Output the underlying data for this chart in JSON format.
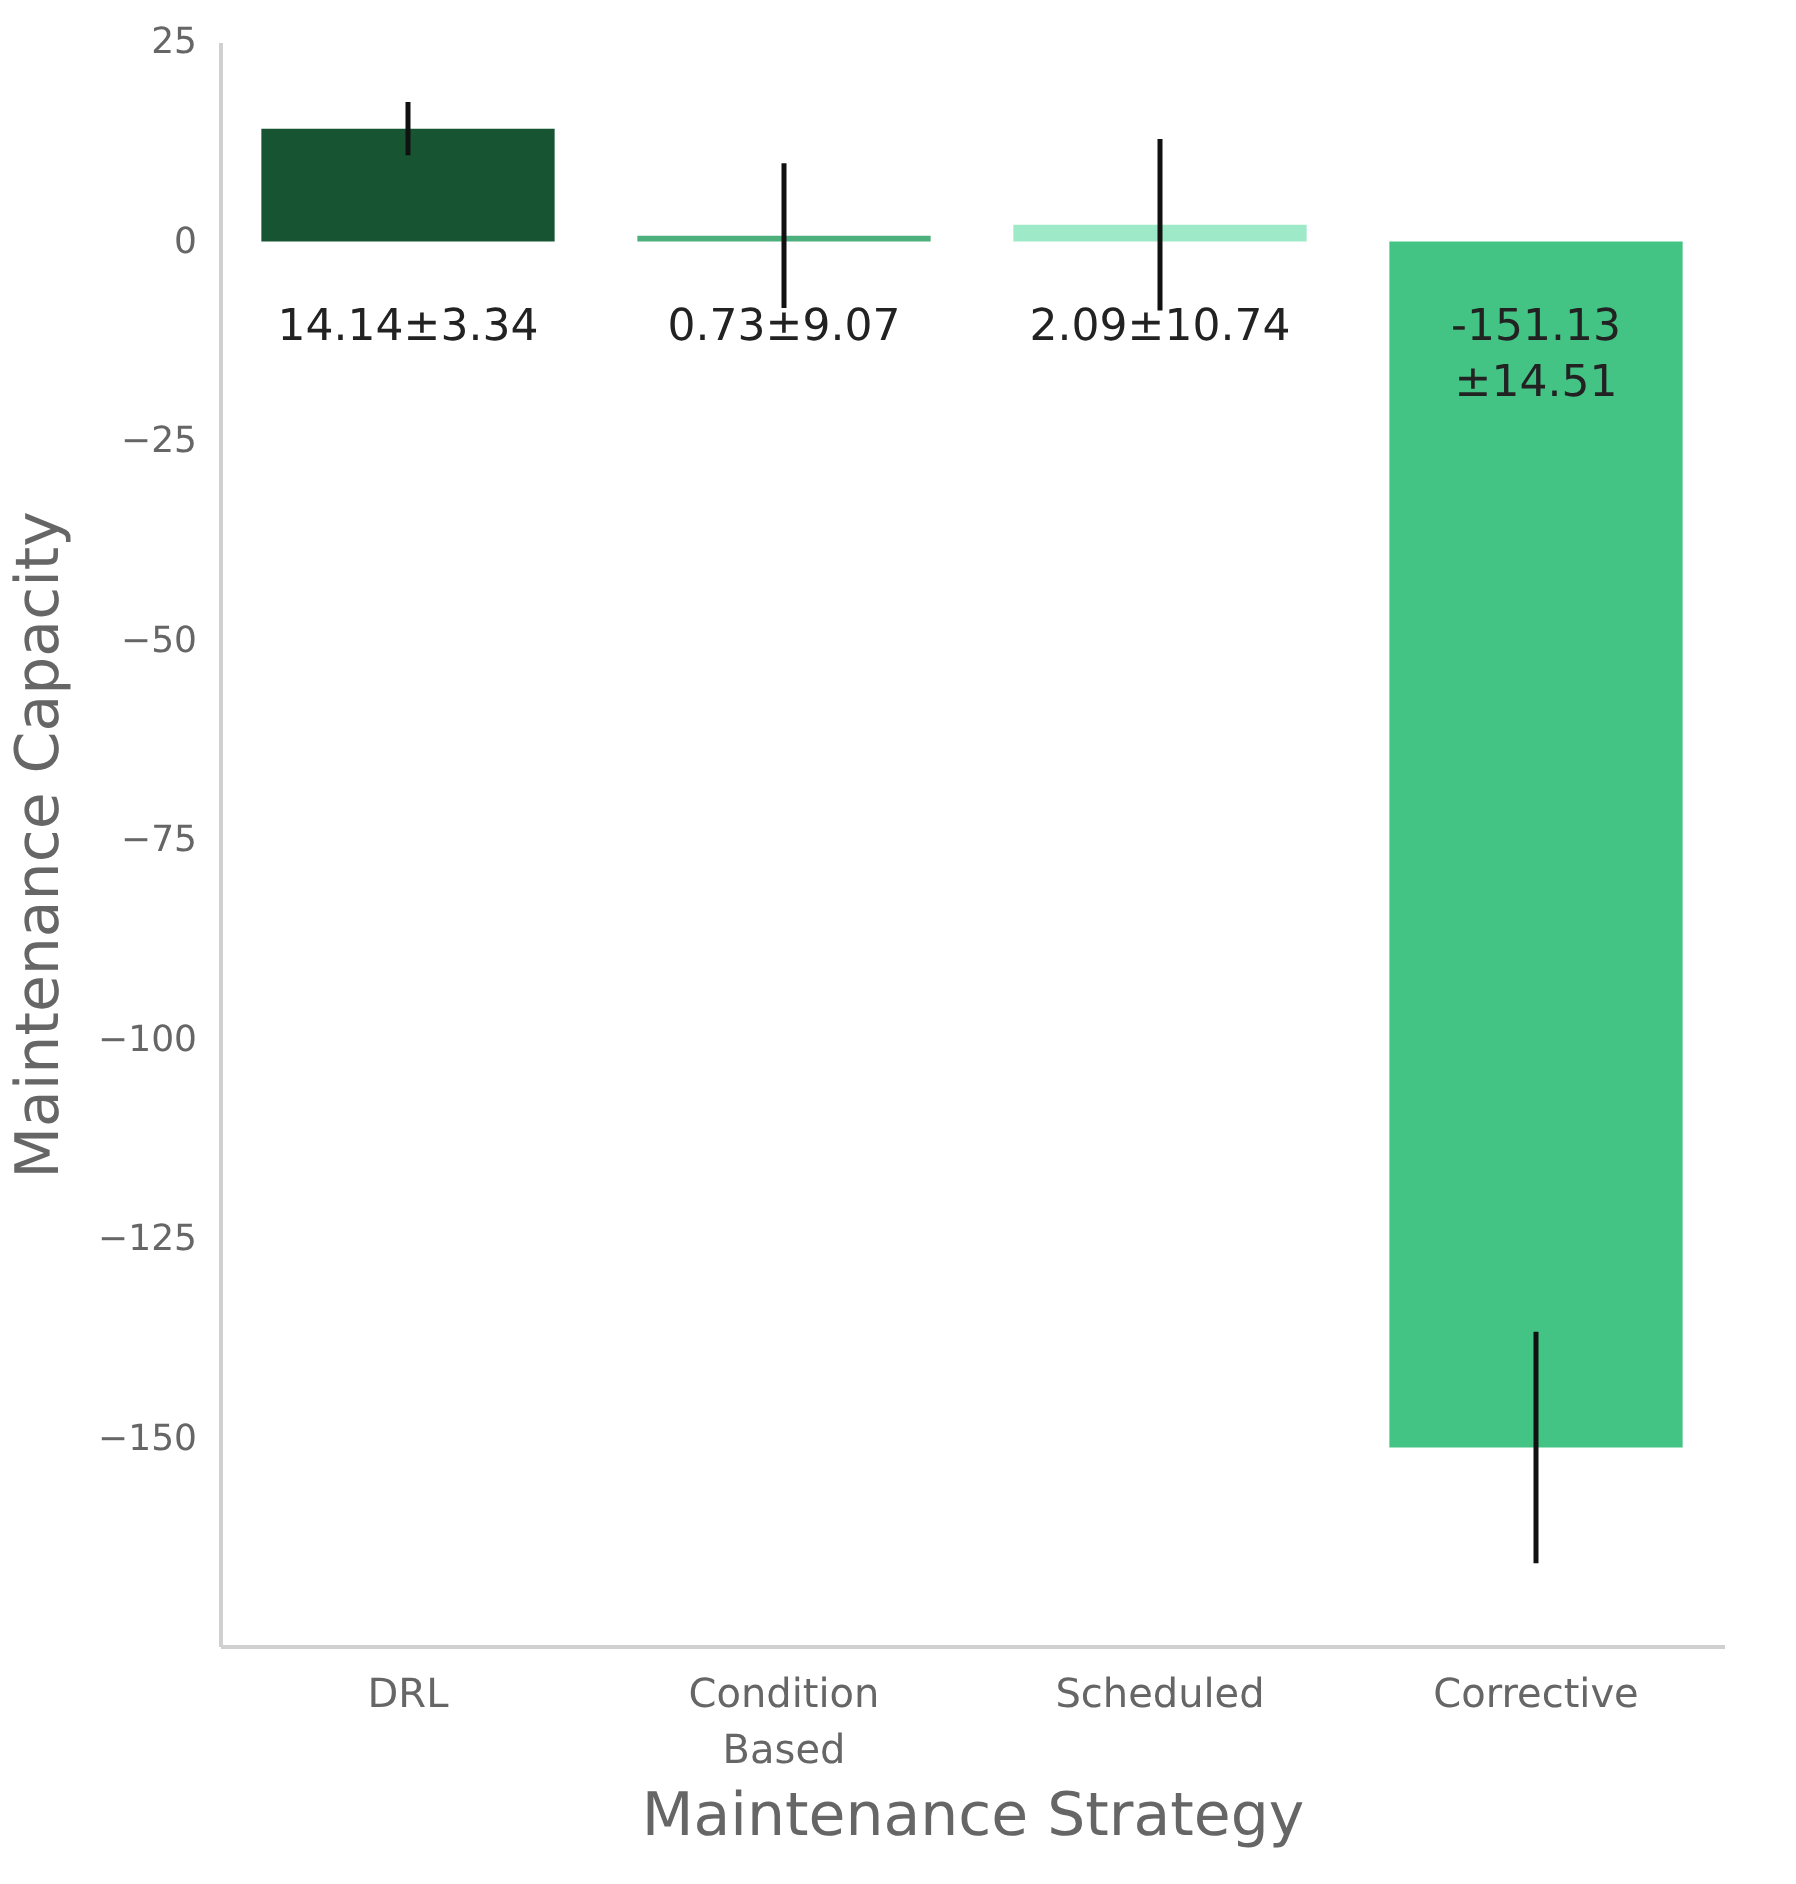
{
  "chart_data": {
    "type": "bar",
    "xlabel": "Maintenance Strategy",
    "ylabel": "Maintenance Capacity",
    "categories": [
      "DRL",
      "Condition Based",
      "Scheduled",
      "Corrective"
    ],
    "values": [
      14.14,
      0.73,
      2.09,
      -151.13
    ],
    "errors": [
      3.34,
      9.07,
      10.74,
      14.51
    ],
    "colors": [
      "#165432",
      "#4daf7c",
      "#9eeac8",
      "#43c484"
    ],
    "value_labels": [
      "14.14±3.34",
      "0.73±9.07",
      "2.09±10.74",
      "-151.13±14.51"
    ],
    "ylim": [
      -176,
      25
    ],
    "yticks": [
      {
        "value": -150,
        "label": "−150"
      },
      {
        "value": -125,
        "label": "−125"
      },
      {
        "value": -100,
        "label": "−100"
      },
      {
        "value": -75,
        "label": "−75"
      },
      {
        "value": -50,
        "label": "−50"
      },
      {
        "value": -25,
        "label": "−25"
      },
      0,
      25
    ],
    "grid": false
  }
}
